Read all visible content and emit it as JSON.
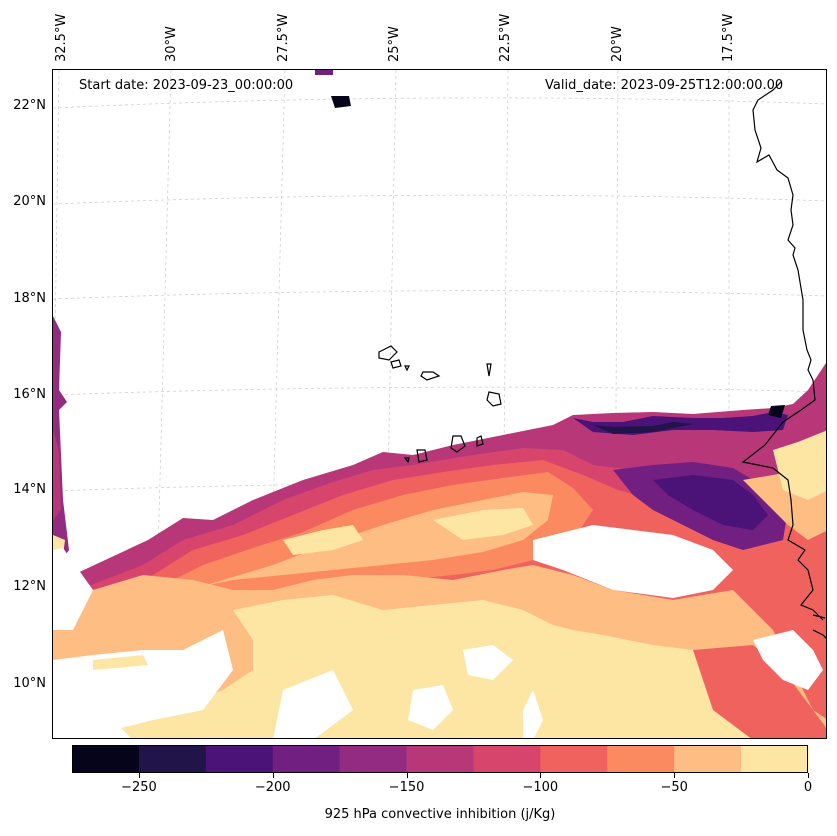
{
  "map": {
    "start_date": "Start date: 2023-09-23_00:00:00",
    "valid_date": "Valid_date: 2023-09-25T12:00:00.00",
    "lat_labels": [
      "22°N",
      "20°N",
      "18°N",
      "16°N",
      "14°N",
      "12°N",
      "10°N"
    ],
    "lon_labels": [
      "32.5°W",
      "30°W",
      "27.5°W",
      "25°W",
      "22.5°W",
      "20°W",
      "17.5°W"
    ],
    "gridline_color": "#cccccc"
  },
  "colorbar": {
    "title": "925 hPa convective inhibition (j/Kg)",
    "ticks": [
      "−250",
      "−200",
      "−150",
      "−100",
      "−50",
      "0"
    ],
    "tick_values": [
      -250,
      -200,
      -150,
      -100,
      -50,
      0
    ],
    "range": [
      -275,
      0
    ],
    "colors": [
      "#05041a",
      "#201448",
      "#4b1278",
      "#711f81",
      "#932b80",
      "#b73779",
      "#d8456c",
      "#f0625d",
      "#fb8a61",
      "#febd82",
      "#fde6a4"
    ]
  }
}
